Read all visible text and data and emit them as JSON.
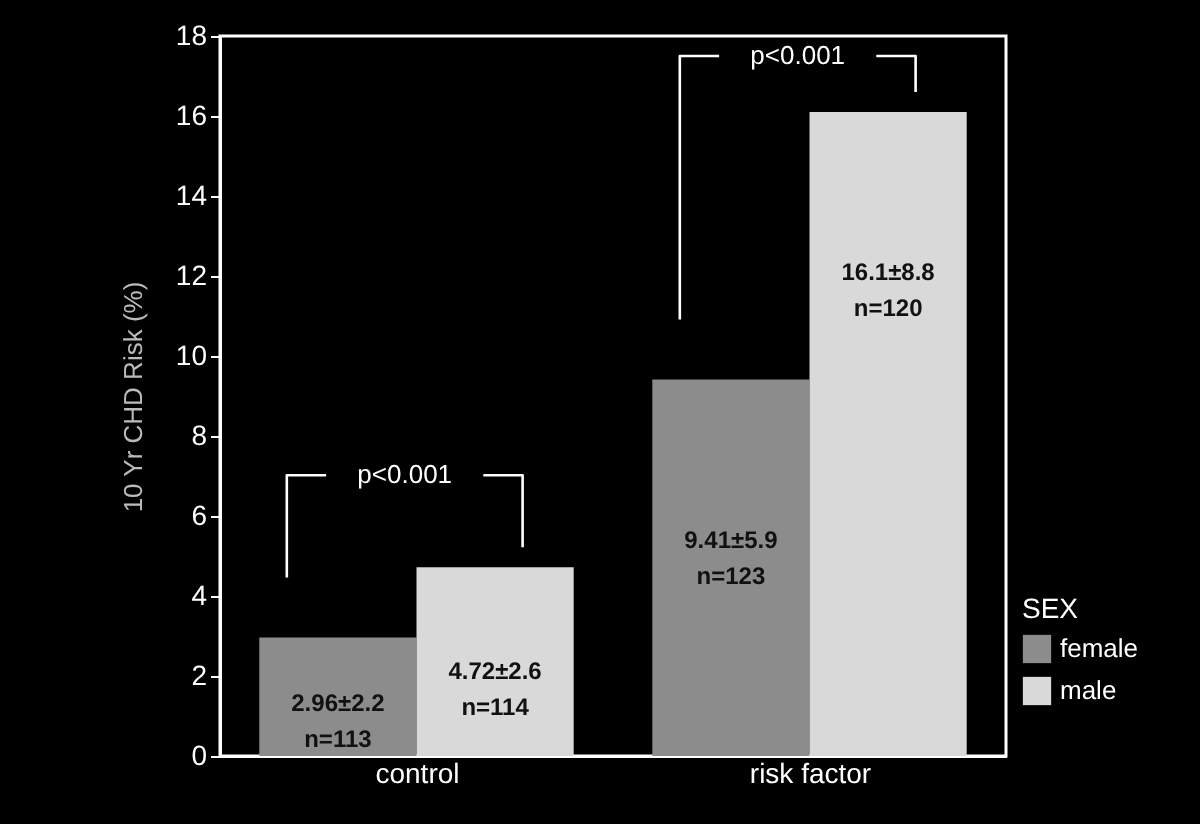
{
  "chart_data": {
    "type": "bar",
    "ylabel": "10 Yr CHD Risk (%)",
    "legend_title": "SEX",
    "categories": [
      "control",
      "risk factor"
    ],
    "series": [
      {
        "name": "female",
        "color": "#8c8c8c",
        "values": [
          2.96,
          9.41
        ],
        "value_labels": [
          "2.96±2.2\nn=113",
          "9.41±5.9\nn=123"
        ]
      },
      {
        "name": "male",
        "color": "#d9d9d9",
        "values": [
          4.72,
          16.1
        ],
        "value_labels": [
          "4.72±2.6\nn=114",
          "16.1±8.8\nn=120"
        ]
      }
    ],
    "ylim": [
      0,
      18
    ],
    "yticks": [
      0,
      2,
      4,
      6,
      8,
      10,
      12,
      14,
      16,
      18
    ],
    "grid": false,
    "legend": "bottom right",
    "annotations": [
      "p<0.001",
      "p<0.001"
    ]
  }
}
